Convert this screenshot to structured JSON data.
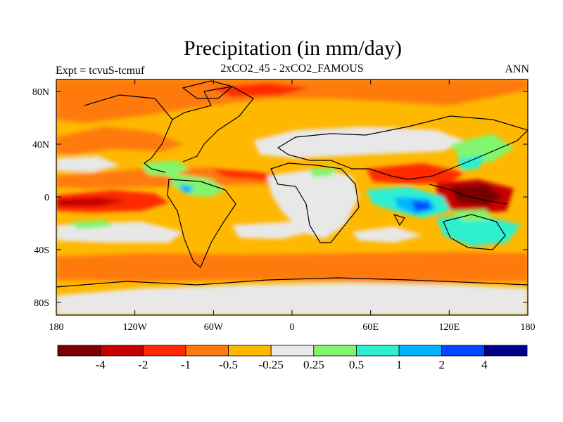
{
  "header": {
    "title": "Precipitation (in mm/day)",
    "left_label": "Expt = tcvuS-tcmuf",
    "center_label": "2xCO2_45 - 2xCO2_FAMOUS",
    "right_label": "ANN"
  },
  "map": {
    "lon_ticks": [
      "180",
      "120W",
      "60W",
      "0",
      "60E",
      "120E",
      "180"
    ],
    "lat_ticks": [
      "80N",
      "40N",
      "0",
      "40S",
      "80S"
    ]
  },
  "colorbar": {
    "colors": [
      "#7a0000",
      "#c80000",
      "#ff2a00",
      "#ff7a10",
      "#ffb800",
      "#e8e8e8",
      "#82f56e",
      "#2ef0d0",
      "#00b4ff",
      "#0048ff",
      "#00008c"
    ],
    "labels": [
      "-4",
      "-2",
      "-1",
      "-0.5",
      "-0.25",
      "0.25",
      "0.5",
      "1",
      "2",
      "4"
    ]
  }
}
